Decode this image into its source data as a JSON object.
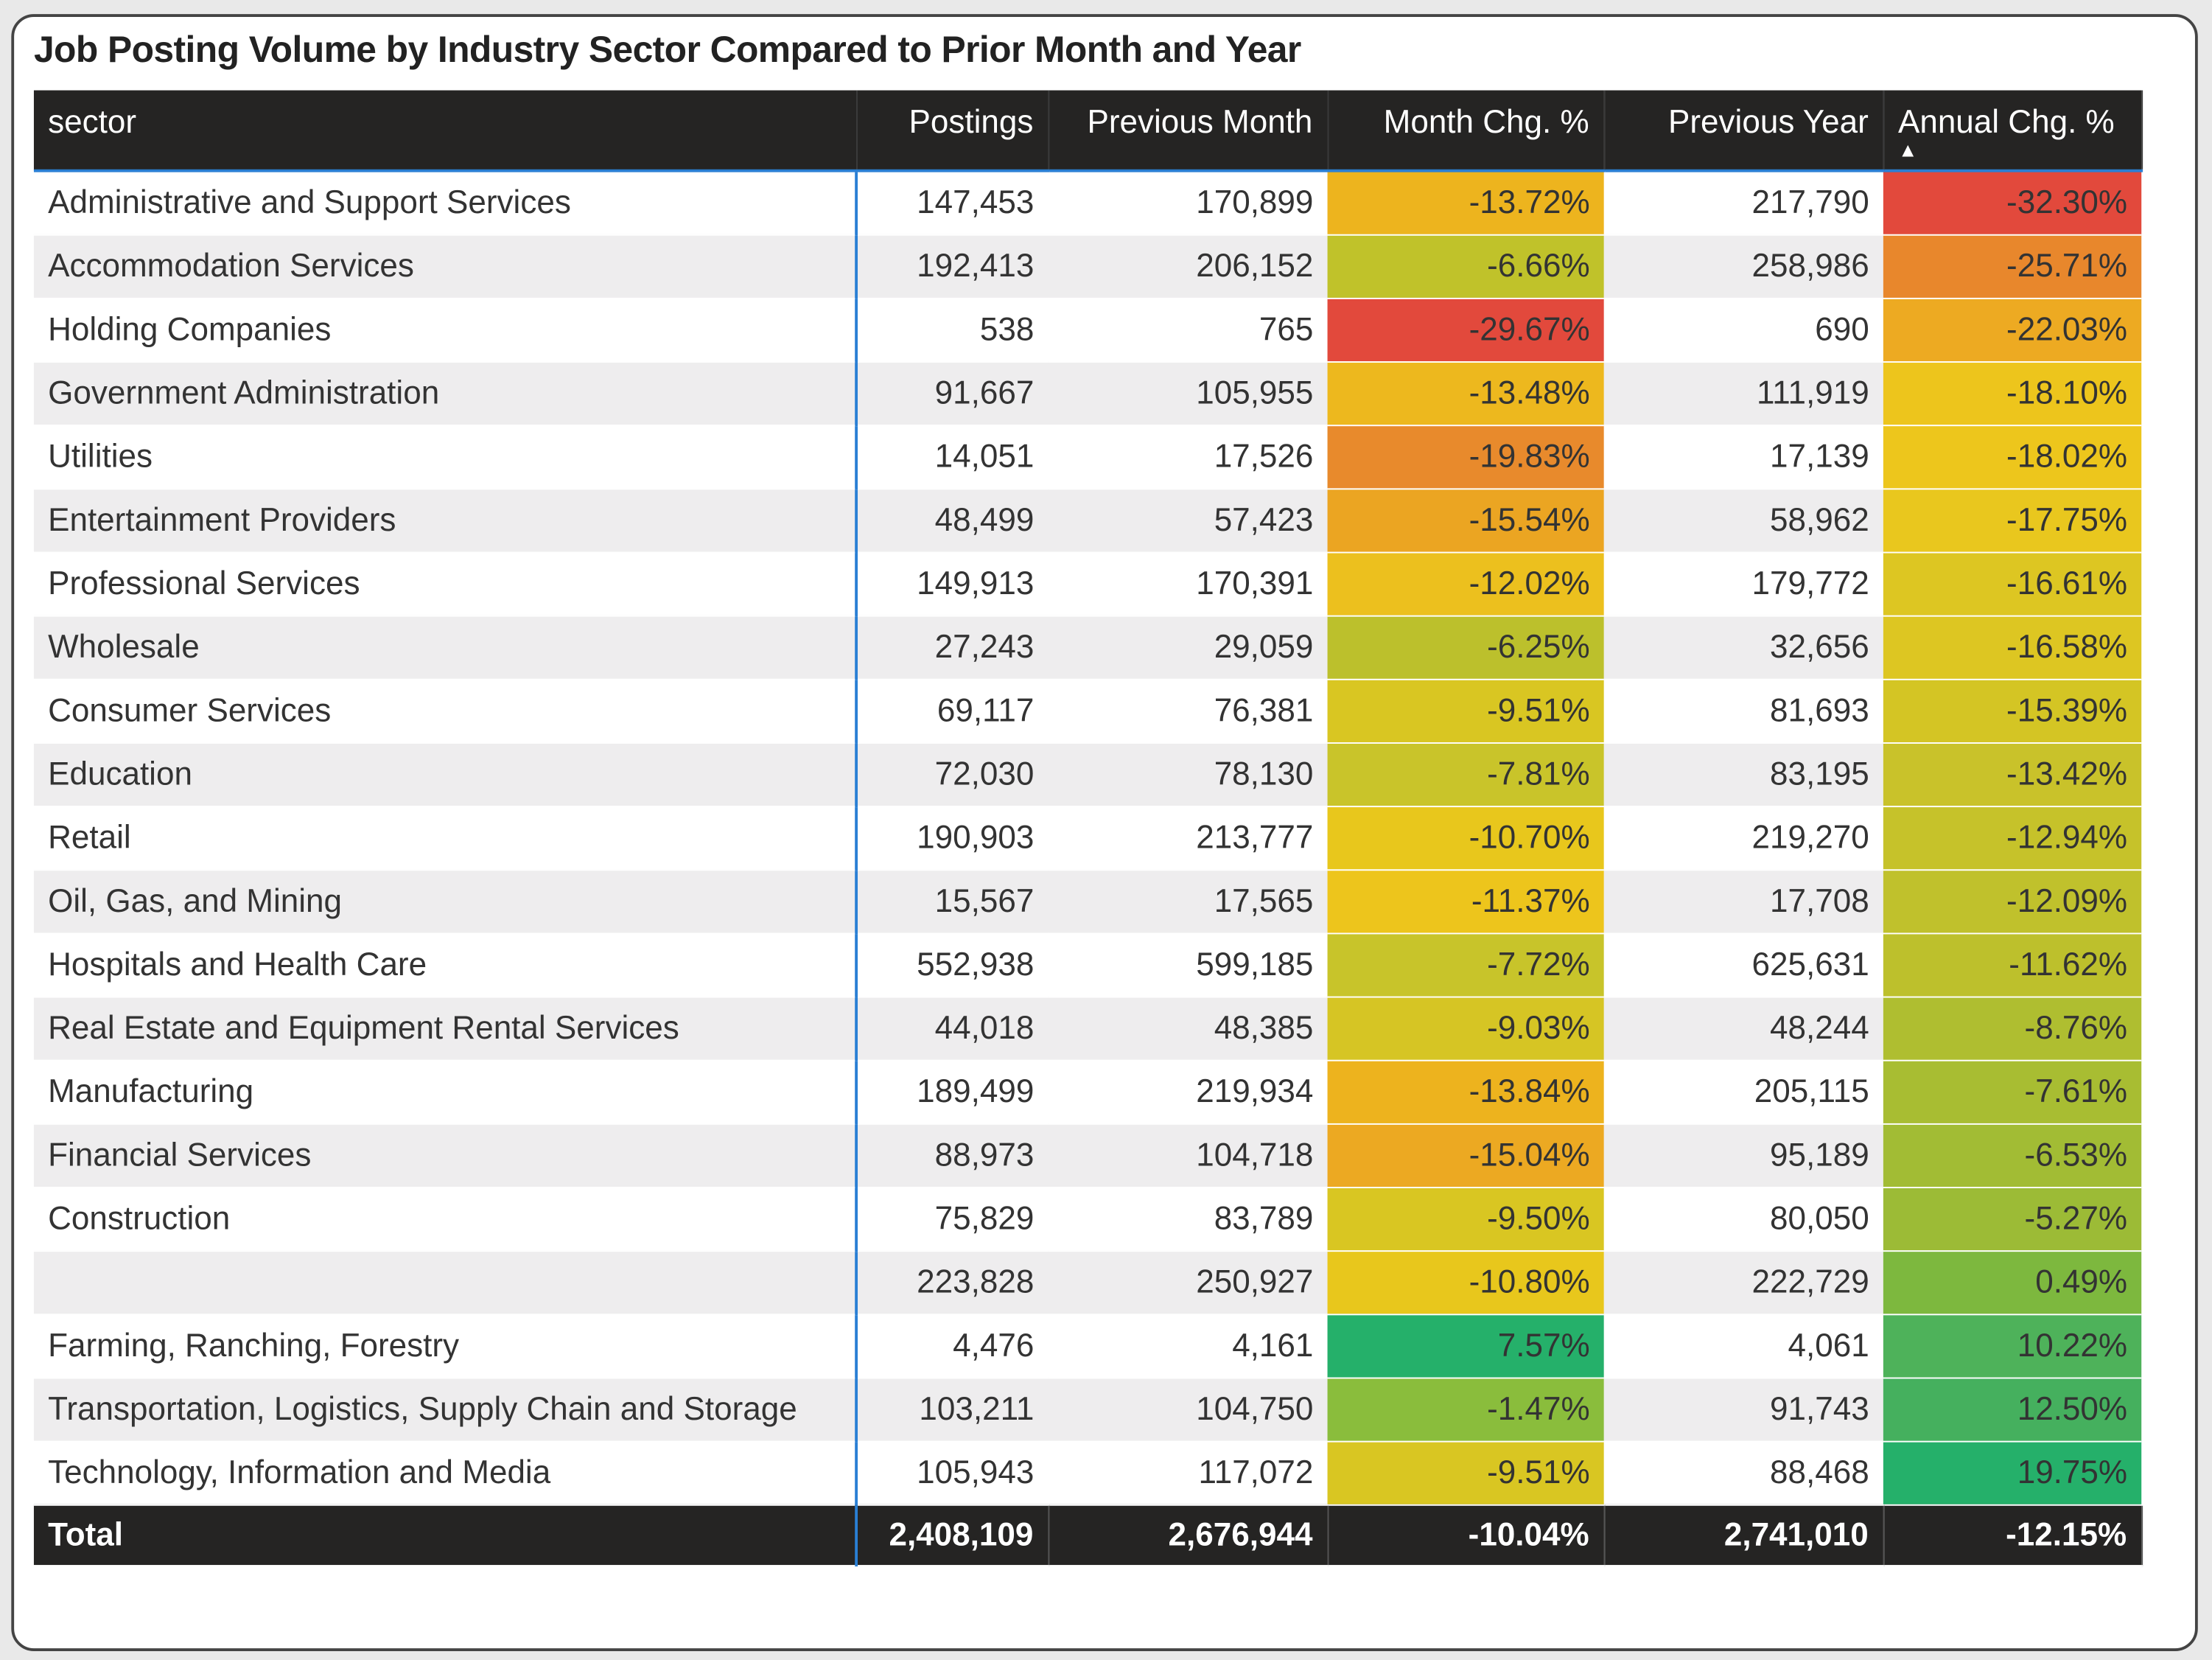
{
  "title": "Job Posting Volume by Industry Sector Compared to Prior Month and Year",
  "columns": [
    "sector",
    "Postings",
    "Previous Month",
    "Month Chg. %",
    "Previous Year",
    "Annual Chg. %"
  ],
  "sort": {
    "column": "Annual Chg. %",
    "direction": "ascending",
    "icon": "sort-up-triangle"
  },
  "rows": [
    [
      "Administrative and Support Services",
      "147,453",
      "170,899",
      "-13.72%",
      "217,790",
      "-32.30%",
      "#EDB41E",
      "#E2493C"
    ],
    [
      "Accommodation Services",
      "192,413",
      "206,152",
      "-6.66%",
      "258,986",
      "-25.71%",
      "#C0C22A",
      "#E8872C"
    ],
    [
      "Holding Companies",
      "538",
      "765",
      "-29.67%",
      "690",
      "-22.03%",
      "#E2493C",
      "#EDAA22"
    ],
    [
      "Government Administration",
      "91,667",
      "105,955",
      "-13.48%",
      "111,919",
      "-18.10%",
      "#EDB81E",
      "#EDC51C"
    ],
    [
      "Utilities",
      "14,051",
      "17,526",
      "-19.83%",
      "17,139",
      "-18.02%",
      "#E88A2C",
      "#EDC61C"
    ],
    [
      "Entertainment Providers",
      "48,499",
      "57,423",
      "-15.54%",
      "58,962",
      "-17.75%",
      "#EBA522",
      "#E9C71E"
    ],
    [
      "Professional Services",
      "149,913",
      "170,391",
      "-12.02%",
      "179,772",
      "-16.61%",
      "#ECC01E",
      "#DDC622"
    ],
    [
      "Wholesale",
      "27,243",
      "29,059",
      "-6.25%",
      "32,656",
      "-16.58%",
      "#BCC02C",
      "#DDC622"
    ],
    [
      "Consumer Services",
      "69,117",
      "76,381",
      "-9.51%",
      "81,693",
      "-15.39%",
      "#D9C622",
      "#D4C524"
    ],
    [
      "Education",
      "72,030",
      "78,130",
      "-7.81%",
      "83,195",
      "-13.42%",
      "#C9C42A",
      "#C9C22A"
    ],
    [
      "Retail",
      "190,903",
      "213,777",
      "-10.70%",
      "219,270",
      "-12.94%",
      "#E8C71C",
      "#C6C22A"
    ],
    [
      "Oil, Gas, and Mining",
      "15,567",
      "17,565",
      "-11.37%",
      "17,708",
      "-12.09%",
      "#EDC51C",
      "#C0C12C"
    ],
    [
      "Hospitals and Health Care",
      "552,938",
      "599,185",
      "-7.72%",
      "625,631",
      "-11.62%",
      "#C8C42A",
      "#BDC02C"
    ],
    [
      "Real Estate and Equipment Rental Services",
      "44,018",
      "48,385",
      "-9.03%",
      "48,244",
      "-8.76%",
      "#D6C524",
      "#AFBE30"
    ],
    [
      "Manufacturing",
      "189,499",
      "219,934",
      "-13.84%",
      "205,115",
      "-7.61%",
      "#EDB31E",
      "#A8BD32"
    ],
    [
      "Financial Services",
      "88,973",
      "104,718",
      "-15.04%",
      "95,189",
      "-6.53%",
      "#ECA922",
      "#A2BC34"
    ],
    [
      "Construction",
      "75,829",
      "83,789",
      "-9.50%",
      "80,050",
      "-5.27%",
      "#D9C622",
      "#9CBB36"
    ],
    [
      "",
      "223,828",
      "250,927",
      "-10.80%",
      "222,729",
      "0.49%",
      "#E8C71C",
      "#7DB83E"
    ],
    [
      "Farming, Ranching, Forestry",
      "4,476",
      "4,161",
      "7.57%",
      "4,061",
      "10.22%",
      "#25B06A",
      "#4EB25A"
    ],
    [
      "Transportation, Logistics, Supply Chain and Storage",
      "103,211",
      "104,750",
      "-1.47%",
      "91,743",
      "12.50%",
      "#8ABD3C",
      "#45B05E"
    ],
    [
      "Technology, Information and Media",
      "105,943",
      "117,072",
      "-9.51%",
      "88,468",
      "19.75%",
      "#D9C622",
      "#25B06A"
    ]
  ],
  "total": [
    "Total",
    "2,408,109",
    "2,676,944",
    "-10.04%",
    "2,741,010",
    "-12.15%"
  ]
}
